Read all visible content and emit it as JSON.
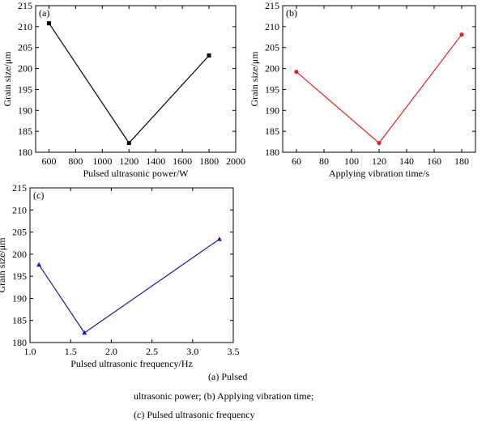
{
  "chart_data": [
    {
      "type": "line",
      "panel_label": "(a)",
      "xlabel": "Pulsed ultrasonic power/W",
      "ylabel": "Grain size/μm",
      "xlim": [
        500,
        2000
      ],
      "ylim": [
        180,
        215
      ],
      "xticks": [
        600,
        800,
        1000,
        1200,
        1400,
        1600,
        1800,
        2000
      ],
      "yticks": [
        180,
        185,
        190,
        195,
        200,
        205,
        210,
        215
      ],
      "marker": "square",
      "color": "#000000",
      "x": [
        600,
        1200,
        1800
      ],
      "y": [
        210.8,
        182.2,
        203.1
      ]
    },
    {
      "type": "line",
      "panel_label": "(b)",
      "xlabel": "Applying vibration time/s",
      "ylabel": "Grain size/μm",
      "xlim": [
        50,
        190
      ],
      "ylim": [
        180,
        215
      ],
      "xticks": [
        60,
        80,
        100,
        120,
        140,
        160,
        180
      ],
      "yticks": [
        180,
        185,
        190,
        195,
        200,
        205,
        210,
        215
      ],
      "marker": "circle",
      "color": "#e02020",
      "x": [
        60,
        120,
        180
      ],
      "y": [
        199.2,
        182.2,
        208.1
      ]
    },
    {
      "type": "line",
      "panel_label": "(c)",
      "xlabel": "Pulsed ultrasonic frequency/Hz",
      "ylabel": "Grain size/μm",
      "xlim": [
        1.0,
        3.5
      ],
      "ylim": [
        180,
        215
      ],
      "xticks": [
        1.0,
        1.5,
        2.0,
        2.5,
        3.0,
        3.5
      ],
      "yticks": [
        180,
        185,
        190,
        195,
        200,
        205,
        210,
        215
      ],
      "marker": "triangle",
      "color": "#1a1aa0",
      "x": [
        1.11,
        1.67,
        3.33
      ],
      "y": [
        197.6,
        182.2,
        203.4
      ]
    }
  ],
  "caption": {
    "line1": "(a) Pulsed",
    "line2": "ultrasonic power; (b) Applying vibration time;",
    "line3": "(c) Pulsed ultrasonic frequency"
  }
}
